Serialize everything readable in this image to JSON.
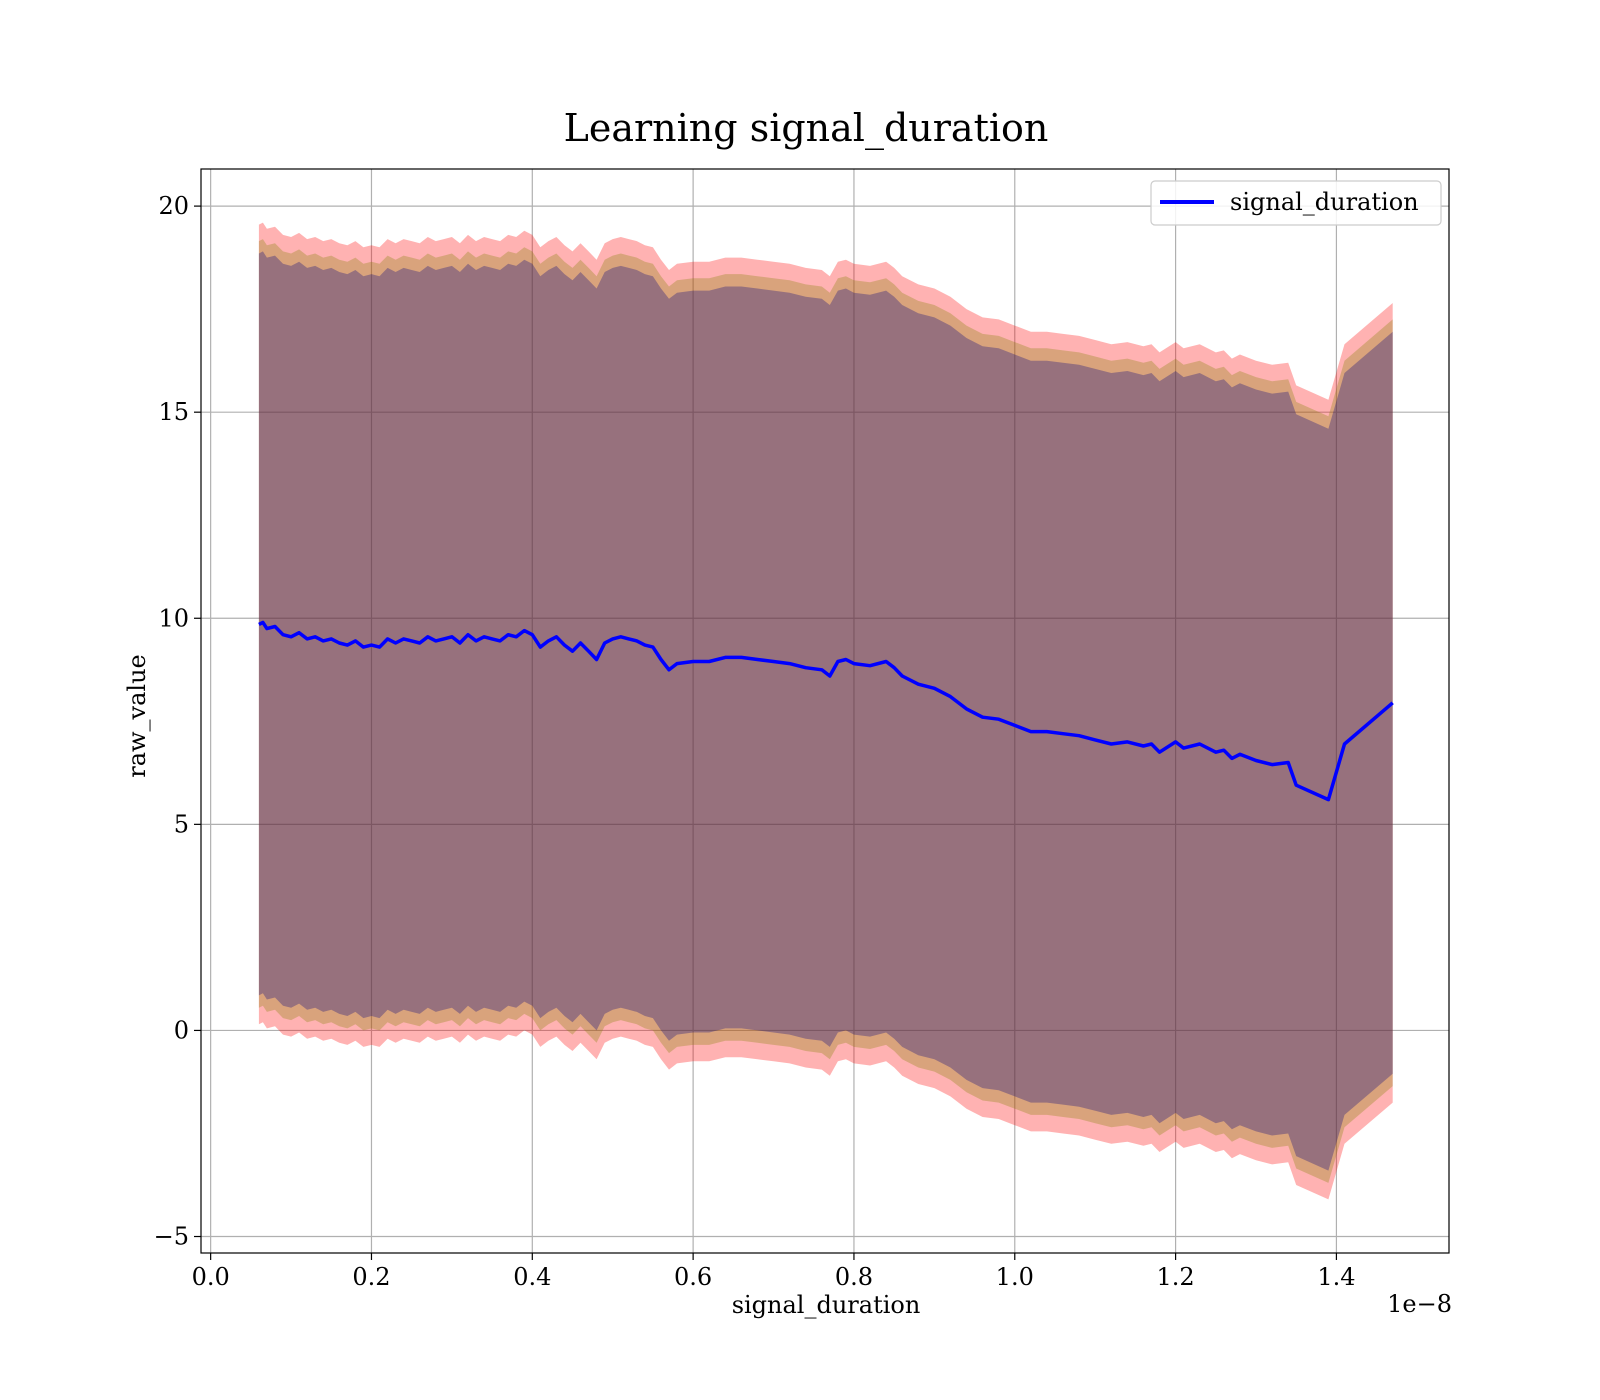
{
  "chart_data": {
    "type": "line",
    "title": "Learning signal_duration",
    "xlabel": "signal_duration",
    "ylabel": "raw_value",
    "x_offset_label": "1e−8",
    "xlim": [
      -0.012,
      1.54
    ],
    "ylim": [
      -5.4,
      20.9
    ],
    "xticks": [
      0.0,
      0.2,
      0.4,
      0.6,
      0.8,
      1.0,
      1.2,
      1.4
    ],
    "xtick_labels": [
      "0.0",
      "0.2",
      "0.4",
      "0.6",
      "0.8",
      "1.0",
      "1.2",
      "1.4"
    ],
    "yticks": [
      -5,
      0,
      5,
      10,
      15,
      20
    ],
    "ytick_labels": [
      "−5",
      "0",
      "5",
      "10",
      "15",
      "20"
    ],
    "grid": true,
    "legend_position": "top-right",
    "series": [
      {
        "name": "signal_duration",
        "color": "#0000ff",
        "x": [
          0.06,
          0.065,
          0.07,
          0.08,
          0.09,
          0.1,
          0.11,
          0.12,
          0.13,
          0.14,
          0.15,
          0.16,
          0.17,
          0.18,
          0.19,
          0.2,
          0.21,
          0.22,
          0.23,
          0.24,
          0.25,
          0.26,
          0.27,
          0.28,
          0.29,
          0.3,
          0.31,
          0.32,
          0.33,
          0.34,
          0.35,
          0.36,
          0.37,
          0.38,
          0.39,
          0.4,
          0.41,
          0.42,
          0.43,
          0.44,
          0.45,
          0.46,
          0.47,
          0.48,
          0.49,
          0.5,
          0.51,
          0.52,
          0.53,
          0.54,
          0.55,
          0.56,
          0.57,
          0.58,
          0.6,
          0.62,
          0.64,
          0.66,
          0.68,
          0.7,
          0.72,
          0.74,
          0.76,
          0.77,
          0.78,
          0.79,
          0.8,
          0.82,
          0.84,
          0.85,
          0.86,
          0.88,
          0.9,
          0.92,
          0.94,
          0.96,
          0.98,
          1.0,
          1.02,
          1.04,
          1.06,
          1.08,
          1.1,
          1.12,
          1.14,
          1.16,
          1.17,
          1.18,
          1.2,
          1.21,
          1.23,
          1.25,
          1.26,
          1.27,
          1.28,
          1.3,
          1.32,
          1.34,
          1.35,
          1.39,
          1.41,
          1.47
        ],
        "y": [
          9.85,
          9.9,
          9.75,
          9.8,
          9.6,
          9.55,
          9.65,
          9.5,
          9.55,
          9.45,
          9.5,
          9.4,
          9.35,
          9.45,
          9.3,
          9.35,
          9.3,
          9.5,
          9.4,
          9.5,
          9.45,
          9.4,
          9.55,
          9.45,
          9.5,
          9.55,
          9.4,
          9.6,
          9.45,
          9.55,
          9.5,
          9.45,
          9.6,
          9.55,
          9.7,
          9.6,
          9.3,
          9.45,
          9.55,
          9.35,
          9.2,
          9.4,
          9.2,
          9.0,
          9.4,
          9.5,
          9.55,
          9.5,
          9.45,
          9.35,
          9.3,
          9.0,
          8.75,
          8.9,
          8.95,
          8.95,
          9.05,
          9.05,
          9.0,
          8.95,
          8.9,
          8.8,
          8.75,
          8.6,
          8.95,
          9.0,
          8.9,
          8.85,
          8.95,
          8.8,
          8.6,
          8.4,
          8.3,
          8.1,
          7.8,
          7.6,
          7.55,
          7.4,
          7.25,
          7.25,
          7.2,
          7.15,
          7.05,
          6.95,
          7.0,
          6.9,
          6.95,
          6.75,
          7.0,
          6.85,
          6.95,
          6.75,
          6.8,
          6.6,
          6.7,
          6.55,
          6.45,
          6.5,
          5.95,
          5.6,
          6.95,
          7.95
        ]
      }
    ],
    "bands": [
      {
        "name": "",
        "color": "#ff0000",
        "opacity": 0.3,
        "half_width": 9.7
      },
      {
        "name": "",
        "color": "#808000",
        "opacity": 0.3,
        "half_width": 9.3
      },
      {
        "name": "",
        "color": "#000080",
        "opacity": 0.3,
        "half_width": 9.0
      }
    ]
  }
}
